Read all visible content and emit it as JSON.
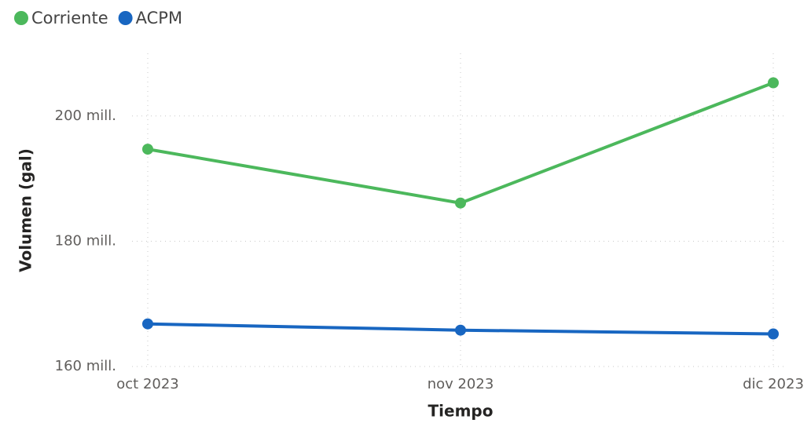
{
  "chart_data": {
    "type": "line",
    "categories": [
      "oct 2023",
      "nov 2023",
      "dic 2023"
    ],
    "series": [
      {
        "name": "Corriente",
        "color": "#4cb85c",
        "values": [
          194700000,
          186100000,
          205300000
        ]
      },
      {
        "name": "ACPM",
        "color": "#1866c1",
        "values": [
          166800000,
          165800000,
          165200000
        ]
      }
    ],
    "ylim": [
      160000000,
      210000000
    ],
    "yticks": [
      {
        "value": 160000000,
        "label": "160 mill."
      },
      {
        "value": 180000000,
        "label": "180 mill."
      },
      {
        "value": 200000000,
        "label": "200 mill."
      }
    ],
    "xlabel": "Tiempo",
    "ylabel": "Volumen (gal)",
    "grid": true,
    "legend": "top-left"
  }
}
